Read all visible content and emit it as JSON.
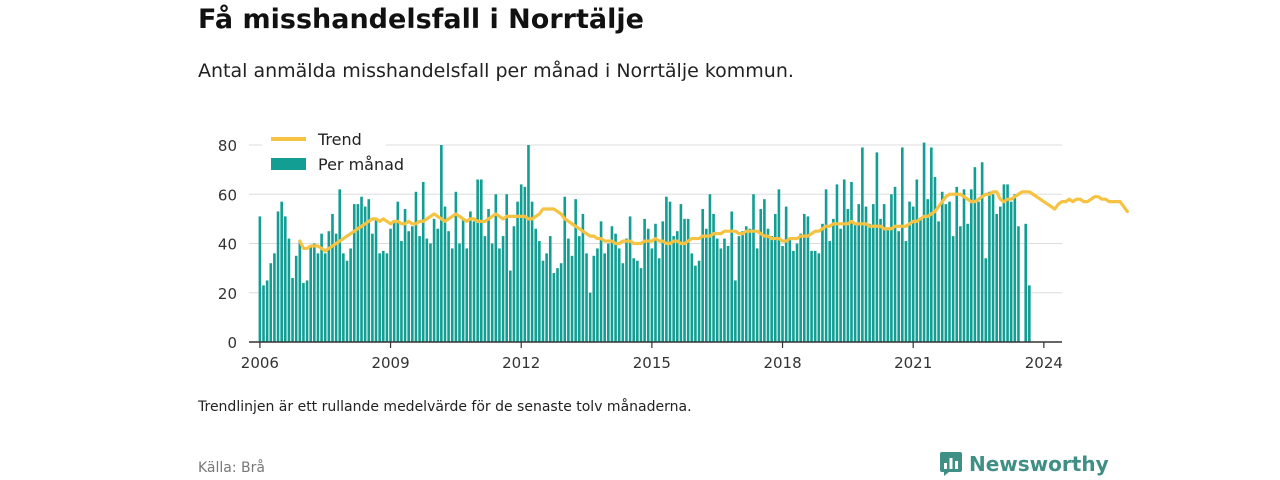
{
  "header": {
    "title": "Få misshandelsfall i Norrtälje",
    "subtitle": "Antal anmälda misshandelsfall per månad i Norrtälje kommun."
  },
  "footer": {
    "note": "Trendlinjen är ett rullande medelvärde för de senaste tolv månaderna.",
    "source": "Källa: Brå",
    "brand": "Newsworthy",
    "brand_icon": "bar-chart-speech-bubble-icon"
  },
  "colors": {
    "bars": "#139e93",
    "trend": "#f5c242",
    "grid": "#dddddd",
    "axis": "#333333",
    "brand": "#3f8f86"
  },
  "chart_data": {
    "type": "bar",
    "title": "Få misshandelsfall i Norrtälje",
    "subtitle": "Antal anmälda misshandelsfall per månad i Norrtälje kommun.",
    "xlabel": "",
    "ylabel": "",
    "x_ticks": [
      "2006",
      "2009",
      "2012",
      "2015",
      "2018",
      "2021",
      "2024"
    ],
    "y_ticks": [
      0,
      20,
      40,
      60,
      80
    ],
    "xlim": [
      "2005-10",
      "2024-06"
    ],
    "ylim": [
      0,
      80
    ],
    "grid": "horizontal",
    "legend": {
      "placement": "top-left",
      "entries": [
        "Trend",
        "Per månad"
      ]
    },
    "series": [
      {
        "name": "Per månad",
        "kind": "bar",
        "start": "2006-01",
        "values": [
          51,
          23,
          25,
          32,
          36,
          53,
          57,
          51,
          42,
          26,
          35,
          41,
          24,
          25,
          39,
          40,
          36,
          44,
          36,
          45,
          52,
          44,
          62,
          36,
          33,
          38,
          56,
          56,
          59,
          55,
          58,
          44,
          50,
          36,
          37,
          36,
          46,
          49,
          57,
          41,
          54,
          45,
          47,
          61,
          43,
          65,
          42,
          40,
          50,
          46,
          80,
          55,
          45,
          38,
          61,
          40,
          50,
          38,
          53,
          49,
          66,
          66,
          43,
          54,
          40,
          60,
          38,
          43,
          60,
          29,
          47,
          57,
          64,
          63,
          80,
          57,
          46,
          41,
          33,
          36,
          43,
          28,
          30,
          32,
          59,
          42,
          35,
          58,
          43,
          52,
          36,
          20,
          35,
          38,
          49,
          36,
          40,
          47,
          44,
          38,
          32,
          42,
          51,
          34,
          33,
          30,
          50,
          46,
          38,
          48,
          34,
          49,
          59,
          57,
          43,
          45,
          56,
          50,
          50,
          36,
          31,
          33,
          54,
          46,
          60,
          52,
          42,
          38,
          42,
          39,
          53,
          25,
          43,
          45,
          47,
          46,
          60,
          38,
          54,
          58,
          46,
          43,
          52,
          62,
          39,
          55,
          42,
          37,
          40,
          44,
          52,
          51,
          37,
          37,
          36,
          48,
          62,
          41,
          50,
          64,
          46,
          66,
          54,
          65,
          48,
          56,
          79,
          55,
          48,
          56,
          77,
          50,
          56,
          46,
          60,
          63,
          45,
          79,
          41,
          57,
          55,
          66,
          50,
          81,
          58,
          79,
          67,
          49,
          61,
          56,
          57,
          43,
          63,
          47,
          62,
          48,
          62,
          71,
          57,
          73,
          34,
          61,
          60,
          52,
          55,
          64,
          64,
          57,
          60,
          47,
          null,
          48,
          23
        ]
      },
      {
        "name": "Trend",
        "kind": "line",
        "start": "2006-12",
        "values": [
          41,
          38,
          38,
          39,
          39,
          39,
          38,
          37,
          38,
          39,
          40,
          41,
          42,
          43,
          44,
          45,
          46,
          47,
          48,
          49,
          50,
          50,
          49,
          50,
          49,
          48,
          49,
          49,
          48,
          48,
          49,
          48,
          48,
          49,
          49,
          50,
          51,
          52,
          51,
          50,
          49,
          50,
          51,
          52,
          51,
          50,
          49,
          50,
          50,
          49,
          49,
          49,
          50,
          51,
          52,
          51,
          50,
          51,
          51,
          51,
          51,
          51,
          51,
          50,
          50,
          51,
          52,
          54,
          54,
          54,
          54,
          53,
          52,
          50,
          49,
          48,
          47,
          46,
          45,
          44,
          43,
          43,
          42,
          42,
          41,
          41,
          41,
          40,
          40,
          41,
          41,
          41,
          40,
          40,
          40,
          41,
          41,
          41,
          42,
          41,
          41,
          40,
          40,
          41,
          41,
          40,
          40,
          41,
          42,
          42,
          42,
          43,
          43,
          43,
          44,
          44,
          44,
          45,
          45,
          45,
          45,
          44,
          44,
          45,
          45,
          45,
          45,
          44,
          43,
          43,
          42,
          42,
          42,
          41,
          41,
          42,
          42,
          42,
          43,
          43,
          43,
          44,
          45,
          45,
          46,
          47,
          47,
          48,
          48,
          48,
          48,
          48,
          49,
          48,
          48,
          48,
          48,
          47,
          47,
          47,
          47,
          46,
          46,
          46,
          47,
          47,
          47,
          47,
          48,
          49,
          49,
          50,
          51,
          51,
          52,
          53,
          55,
          57,
          59,
          60,
          60,
          60,
          60,
          59,
          58,
          57,
          57,
          58,
          59,
          60,
          60,
          61,
          61,
          58,
          57,
          58,
          58,
          59,
          60,
          61,
          61,
          61,
          60,
          59,
          58,
          57,
          56,
          55,
          54,
          56,
          57,
          57,
          58,
          57,
          58,
          58,
          57,
          57,
          58,
          59,
          59,
          58,
          58,
          57,
          57,
          57,
          57,
          55,
          53
        ]
      }
    ]
  }
}
